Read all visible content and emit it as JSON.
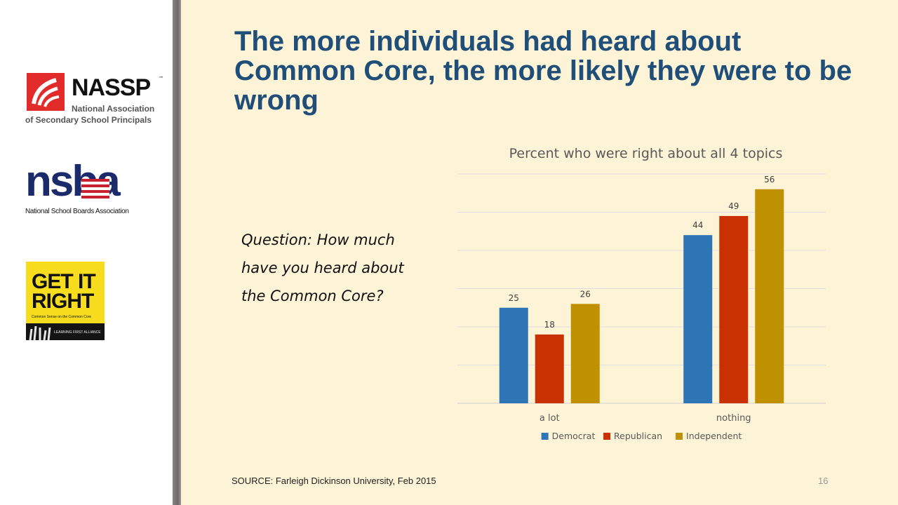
{
  "slide": {
    "title": "The more individuals had heard about Common Core, the more likely they were to be wrong",
    "question": "Question: How much have you heard about the Common Core?",
    "source": "SOURCE: Farleigh Dickinson University, Feb 2015",
    "page_number": "16",
    "background_color": "#fdf3d6",
    "title_color": "#1f4e79"
  },
  "logos": {
    "nassp": {
      "name": "NASSP",
      "trademark": "™",
      "line1": "National Association",
      "line2": "of Secondary School Principals"
    },
    "nsba": {
      "name": "nsba",
      "caption": "National School Boards Association"
    },
    "get_it_right": {
      "line1": "GET IT",
      "line2": "RIGHT",
      "tagline": "Common Sense on the Common Core",
      "footer": "LEARNING FIRST ALLIANCE"
    }
  },
  "chart_data": {
    "type": "bar",
    "title": "Percent who were right about all 4 topics",
    "categories": [
      "a lot",
      "nothing"
    ],
    "series": [
      {
        "name": "Democrat",
        "color": "#2e75b6",
        "values": [
          25,
          44
        ]
      },
      {
        "name": "Republican",
        "color": "#c93200",
        "values": [
          18,
          49
        ]
      },
      {
        "name": "Independent",
        "color": "#bf9000",
        "values": [
          26,
          56
        ]
      }
    ],
    "ylim": [
      0,
      60
    ],
    "grid": true,
    "show_y_axis_labels": false,
    "data_labels": true,
    "legend_position": "bottom"
  }
}
